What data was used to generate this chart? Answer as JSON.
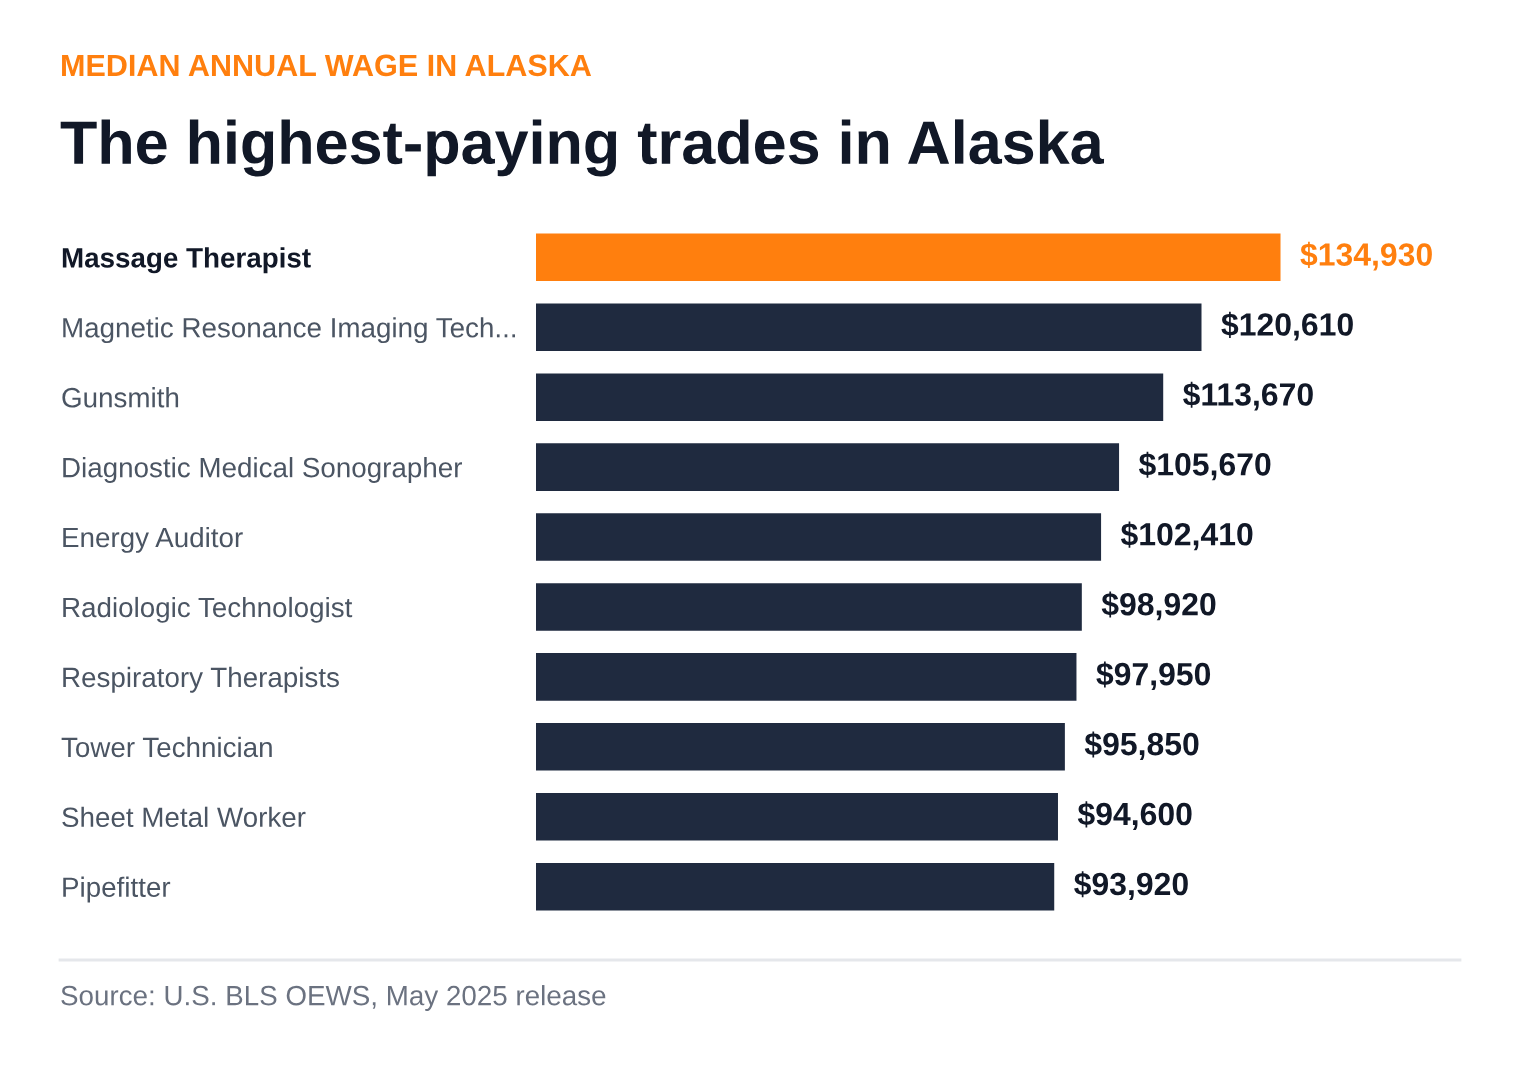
{
  "chart_data": {
    "type": "bar",
    "orientation": "horizontal",
    "subtitle": "MEDIAN ANNUAL WAGE IN ALASKA",
    "title": "The highest-paying trades in Alaska",
    "categories": [
      "Massage Therapist",
      "Magnetic Resonance Imaging Tech...",
      "Gunsmith",
      "Diagnostic Medical Sonographer",
      "Energy Auditor",
      "Radiologic Technologist",
      "Respiratory Therapists",
      "Tower Technician",
      "Sheet Metal Worker",
      "Pipefitter"
    ],
    "values": [
      134930,
      120610,
      113670,
      105670,
      102410,
      98920,
      97950,
      95850,
      94600,
      93920
    ],
    "value_labels": [
      "$134,930",
      "$120,610",
      "$113,670",
      "$105,670",
      "$102,410",
      "$98,920",
      "$97,950",
      "$95,850",
      "$94,600",
      "$93,920"
    ],
    "colors": [
      "#ff7f0e",
      "#1f2a3f",
      "#1f2a3f",
      "#1f2a3f",
      "#1f2a3f",
      "#1f2a3f",
      "#1f2a3f",
      "#1f2a3f",
      "#1f2a3f",
      "#1f2a3f"
    ],
    "annotations": [
      "Source: U.S. BLS OEWS, May 2025 release"
    ],
    "grid": false,
    "legend": false
  }
}
